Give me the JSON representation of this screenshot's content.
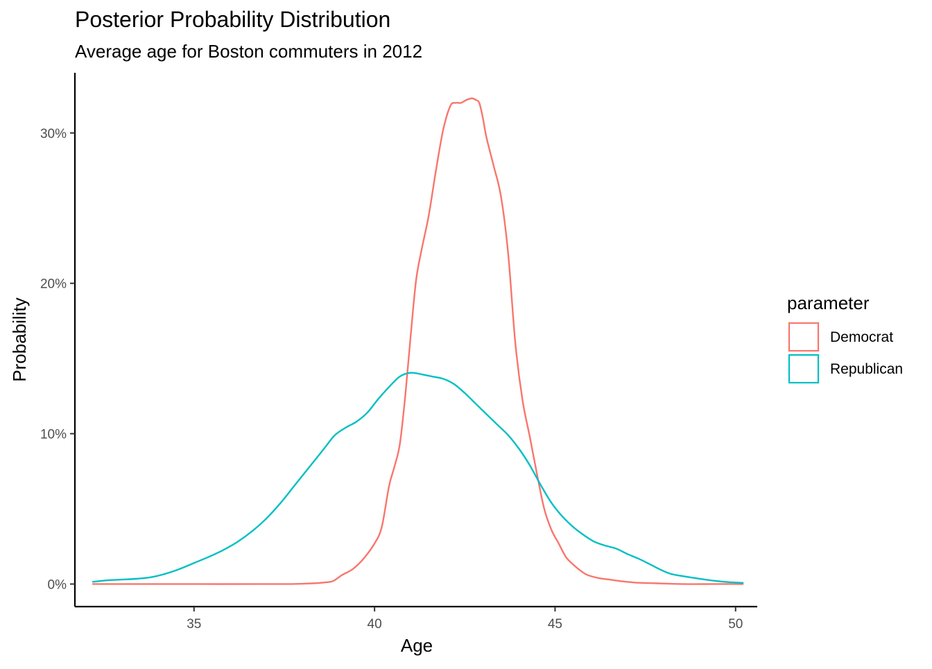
{
  "chart_data": {
    "type": "line",
    "title": "Posterior Probability Distribution",
    "subtitle": "Average age for Boston commuters in 2012",
    "xlabel": "Age",
    "ylabel": "Probability",
    "xlim": [
      31.7,
      50.6
    ],
    "ylim": [
      -0.015,
      0.34
    ],
    "x_ticks": [
      35,
      40,
      45,
      50
    ],
    "x_tick_labels": [
      "35",
      "40",
      "45",
      "50"
    ],
    "y_ticks": [
      0,
      0.1,
      0.2,
      0.3
    ],
    "y_tick_labels": [
      "0%",
      "10%",
      "20%",
      "30%"
    ],
    "grid": false,
    "legend": {
      "title": "parameter",
      "position": "right"
    },
    "series": [
      {
        "name": "Democrat",
        "color": "#F8766D",
        "x": [
          32.2,
          35.0,
          37.5,
          38.3,
          38.6,
          38.85,
          39.1,
          39.4,
          39.7,
          40.0,
          40.2,
          40.4,
          40.55,
          40.7,
          40.85,
          41.0,
          41.15,
          41.3,
          41.5,
          41.7,
          41.9,
          42.1,
          42.25,
          42.4,
          42.55,
          42.7,
          42.8,
          42.9,
          43.0,
          43.1,
          43.3,
          43.5,
          43.7,
          43.9,
          44.1,
          44.3,
          44.5,
          44.7,
          44.9,
          45.1,
          45.3,
          45.5,
          45.7,
          45.9,
          46.2,
          46.5,
          46.8,
          47.2,
          47.8,
          48.5,
          49.5,
          50.2
        ],
        "y": [
          0.0,
          0.0,
          0.0,
          0.0005,
          0.001,
          0.002,
          0.006,
          0.01,
          0.017,
          0.027,
          0.038,
          0.065,
          0.078,
          0.093,
          0.125,
          0.165,
          0.202,
          0.222,
          0.245,
          0.275,
          0.302,
          0.318,
          0.32,
          0.32,
          0.322,
          0.323,
          0.322,
          0.32,
          0.31,
          0.297,
          0.278,
          0.258,
          0.22,
          0.16,
          0.122,
          0.098,
          0.073,
          0.05,
          0.036,
          0.027,
          0.018,
          0.013,
          0.009,
          0.006,
          0.004,
          0.003,
          0.002,
          0.001,
          0.0005,
          0.0,
          0.0,
          0.0
        ]
      },
      {
        "name": "Republican",
        "color": "#00BFC4",
        "x": [
          32.2,
          32.6,
          33.0,
          33.4,
          33.8,
          34.2,
          34.6,
          35.0,
          35.4,
          35.8,
          36.2,
          36.6,
          37.0,
          37.4,
          37.8,
          38.2,
          38.6,
          38.9,
          39.2,
          39.5,
          39.8,
          40.1,
          40.4,
          40.7,
          41.0,
          41.3,
          41.6,
          41.9,
          42.2,
          42.5,
          42.8,
          43.1,
          43.4,
          43.7,
          44.0,
          44.3,
          44.6,
          44.9,
          45.2,
          45.5,
          45.8,
          46.1,
          46.4,
          46.7,
          47.0,
          47.3,
          47.6,
          47.9,
          48.2,
          48.6,
          49.0,
          49.4,
          49.8,
          50.2
        ],
        "y": [
          0.0015,
          0.0025,
          0.003,
          0.0035,
          0.0045,
          0.0068,
          0.01,
          0.014,
          0.018,
          0.0225,
          0.028,
          0.035,
          0.0435,
          0.054,
          0.066,
          0.078,
          0.09,
          0.099,
          0.104,
          0.108,
          0.114,
          0.123,
          0.131,
          0.138,
          0.1405,
          0.1395,
          0.138,
          0.1365,
          0.133,
          0.127,
          0.12,
          0.113,
          0.106,
          0.099,
          0.09,
          0.079,
          0.066,
          0.054,
          0.045,
          0.038,
          0.0325,
          0.028,
          0.0255,
          0.0235,
          0.02,
          0.017,
          0.0135,
          0.0098,
          0.0068,
          0.005,
          0.0035,
          0.0022,
          0.0013,
          0.0008
        ]
      }
    ]
  }
}
